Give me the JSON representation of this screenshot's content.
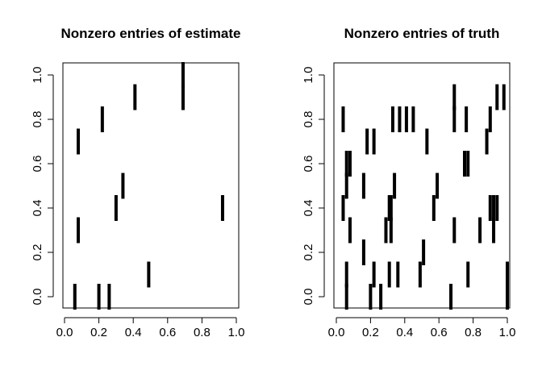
{
  "chart_data": [
    {
      "type": "heatmap",
      "title": "Nonzero entries of estimate",
      "xlabel": "",
      "ylabel": "",
      "xlim": [
        0,
        1
      ],
      "ylim": [
        0,
        1
      ],
      "x_ticks": [
        "0.0",
        "0.2",
        "0.4",
        "0.6",
        "0.8",
        "1.0"
      ],
      "y_ticks": [
        "0.0",
        "0.2",
        "0.4",
        "0.6",
        "0.8",
        "1.0"
      ],
      "grid": false,
      "color": "#000000",
      "nonzero": [
        {
          "x": 0.06,
          "y": 0.0
        },
        {
          "x": 0.2,
          "y": 0.0
        },
        {
          "x": 0.26,
          "y": 0.0
        },
        {
          "x": 0.49,
          "y": 0.1
        },
        {
          "x": 0.08,
          "y": 0.3
        },
        {
          "x": 0.3,
          "y": 0.4
        },
        {
          "x": 0.92,
          "y": 0.4
        },
        {
          "x": 0.34,
          "y": 0.5
        },
        {
          "x": 0.08,
          "y": 0.7
        },
        {
          "x": 0.22,
          "y": 0.8
        },
        {
          "x": 0.41,
          "y": 0.9
        },
        {
          "x": 0.69,
          "y": 0.9
        },
        {
          "x": 0.69,
          "y": 1.0
        }
      ]
    },
    {
      "type": "heatmap",
      "title": "Nonzero entries of truth",
      "xlabel": "",
      "ylabel": "",
      "xlim": [
        0,
        1
      ],
      "ylim": [
        0,
        1
      ],
      "x_ticks": [
        "0.0",
        "0.2",
        "0.4",
        "0.6",
        "0.8",
        "1.0"
      ],
      "y_ticks": [
        "0.0",
        "0.2",
        "0.4",
        "0.6",
        "0.8",
        "1.0"
      ],
      "grid": false,
      "color": "#000000",
      "nonzero": [
        {
          "x": 0.06,
          "y": 0.0
        },
        {
          "x": 0.2,
          "y": 0.0
        },
        {
          "x": 0.26,
          "y": 0.0
        },
        {
          "x": 0.67,
          "y": 0.0
        },
        {
          "x": 1.0,
          "y": 0.0
        },
        {
          "x": 0.06,
          "y": 0.1
        },
        {
          "x": 0.22,
          "y": 0.1
        },
        {
          "x": 0.31,
          "y": 0.1
        },
        {
          "x": 0.36,
          "y": 0.1
        },
        {
          "x": 0.49,
          "y": 0.1
        },
        {
          "x": 0.77,
          "y": 0.1
        },
        {
          "x": 1.0,
          "y": 0.1
        },
        {
          "x": 0.16,
          "y": 0.2
        },
        {
          "x": 0.51,
          "y": 0.2
        },
        {
          "x": 0.08,
          "y": 0.3
        },
        {
          "x": 0.29,
          "y": 0.3
        },
        {
          "x": 0.32,
          "y": 0.3
        },
        {
          "x": 0.69,
          "y": 0.3
        },
        {
          "x": 0.84,
          "y": 0.3
        },
        {
          "x": 0.92,
          "y": 0.3
        },
        {
          "x": 0.04,
          "y": 0.4
        },
        {
          "x": 0.31,
          "y": 0.4
        },
        {
          "x": 0.32,
          "y": 0.4
        },
        {
          "x": 0.57,
          "y": 0.4
        },
        {
          "x": 0.9,
          "y": 0.4
        },
        {
          "x": 0.92,
          "y": 0.4
        },
        {
          "x": 0.94,
          "y": 0.4
        },
        {
          "x": 0.06,
          "y": 0.5
        },
        {
          "x": 0.16,
          "y": 0.5
        },
        {
          "x": 0.34,
          "y": 0.5
        },
        {
          "x": 0.59,
          "y": 0.5
        },
        {
          "x": 0.06,
          "y": 0.6
        },
        {
          "x": 0.08,
          "y": 0.6
        },
        {
          "x": 0.75,
          "y": 0.6
        },
        {
          "x": 0.77,
          "y": 0.6
        },
        {
          "x": 0.18,
          "y": 0.7
        },
        {
          "x": 0.22,
          "y": 0.7
        },
        {
          "x": 0.53,
          "y": 0.7
        },
        {
          "x": 0.88,
          "y": 0.7
        },
        {
          "x": 0.04,
          "y": 0.8
        },
        {
          "x": 0.33,
          "y": 0.8
        },
        {
          "x": 0.37,
          "y": 0.8
        },
        {
          "x": 0.41,
          "y": 0.8
        },
        {
          "x": 0.45,
          "y": 0.8
        },
        {
          "x": 0.69,
          "y": 0.8
        },
        {
          "x": 0.76,
          "y": 0.8
        },
        {
          "x": 0.9,
          "y": 0.8
        },
        {
          "x": 0.69,
          "y": 0.9
        },
        {
          "x": 0.94,
          "y": 0.9
        },
        {
          "x": 0.98,
          "y": 0.9
        }
      ]
    }
  ]
}
